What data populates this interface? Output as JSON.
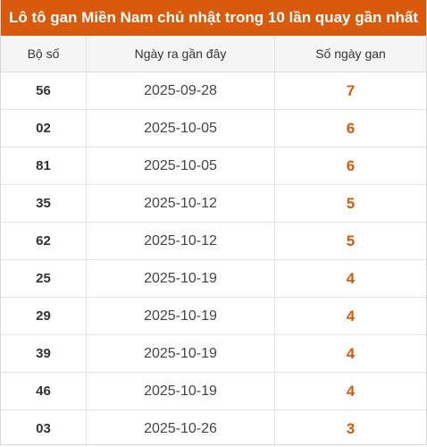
{
  "table": {
    "title": "Lô tô gan Miền Nam chủ nhật trong 10 lần quay gần nhất",
    "headers": {
      "number": "Bộ số",
      "last_date": "Ngày ra gần đây",
      "gan_days": "Số ngày gan"
    },
    "rows": [
      {
        "number": "56",
        "last_date": "2025-09-28",
        "gan_days": "7"
      },
      {
        "number": "02",
        "last_date": "2025-10-05",
        "gan_days": "6"
      },
      {
        "number": "81",
        "last_date": "2025-10-05",
        "gan_days": "6"
      },
      {
        "number": "35",
        "last_date": "2025-10-12",
        "gan_days": "5"
      },
      {
        "number": "62",
        "last_date": "2025-10-12",
        "gan_days": "5"
      },
      {
        "number": "25",
        "last_date": "2025-10-19",
        "gan_days": "4"
      },
      {
        "number": "29",
        "last_date": "2025-10-19",
        "gan_days": "4"
      },
      {
        "number": "39",
        "last_date": "2025-10-19",
        "gan_days": "4"
      },
      {
        "number": "46",
        "last_date": "2025-10-19",
        "gan_days": "4"
      },
      {
        "number": "03",
        "last_date": "2025-10-26",
        "gan_days": "3"
      }
    ]
  },
  "colors": {
    "accent": "#d95a0c",
    "header_bg": "#f5f5f5",
    "border": "#e3e3e3"
  }
}
